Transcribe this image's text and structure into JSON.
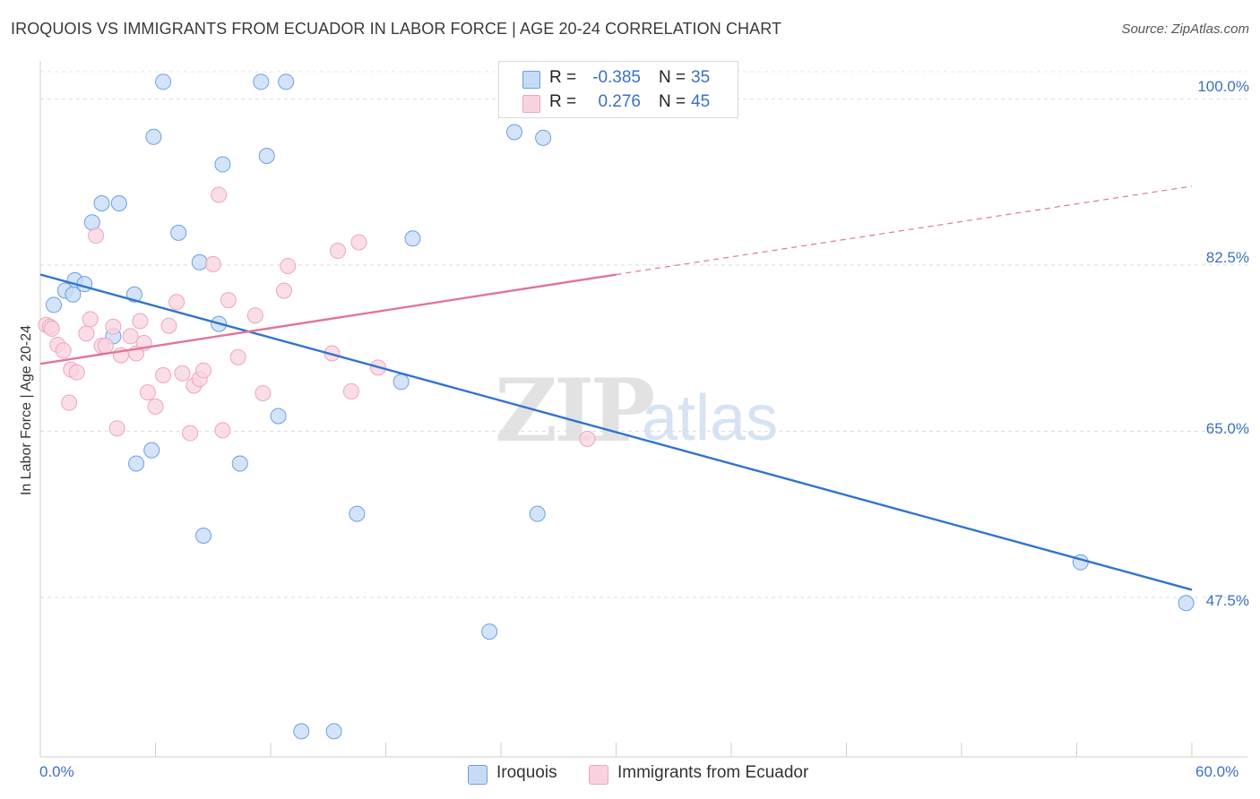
{
  "chart_data": {
    "type": "scatter",
    "title": "IROQUOIS VS IMMIGRANTS FROM ECUADOR IN LABOR FORCE | AGE 20-24 CORRELATION CHART",
    "source": "Source: ZipAtlas.com",
    "ylabel": "In Labor Force | Age 20-24",
    "xlabel": "",
    "xlim": [
      0,
      60
    ],
    "ylim": [
      30.7,
      104.0
    ],
    "x_tick_labels": [
      "0.0%",
      "60.0%"
    ],
    "y_ticks": [
      47.5,
      65.0,
      82.5,
      100.0
    ],
    "y_tick_labels": [
      "47.5%",
      "65.0%",
      "82.5%",
      "100.0%"
    ],
    "grid": true,
    "legend_position": "top-center",
    "watermark": {
      "part1": "ZIP",
      "part2": "atlas"
    },
    "series": [
      {
        "name": "Iroquois",
        "color": "#6b9fe0",
        "fill": "#c6dbf5",
        "line_color": "#2f74d0",
        "legend": {
          "r_label": "R =",
          "r": "-0.385",
          "n_label": "N =",
          "n": "35"
        },
        "points": [
          [
            6.4,
            101.8
          ],
          [
            11.5,
            101.8
          ],
          [
            12.8,
            101.8
          ],
          [
            5.9,
            96.0
          ],
          [
            9.5,
            93.1
          ],
          [
            11.8,
            94.0
          ],
          [
            3.2,
            89.0
          ],
          [
            4.1,
            89.0
          ],
          [
            2.7,
            87.0
          ],
          [
            7.2,
            85.9
          ],
          [
            19.4,
            85.3
          ],
          [
            8.3,
            82.8
          ],
          [
            1.8,
            80.9
          ],
          [
            2.3,
            80.5
          ],
          [
            1.3,
            79.8
          ],
          [
            1.7,
            79.4
          ],
          [
            4.9,
            79.4
          ],
          [
            0.7,
            78.3
          ],
          [
            9.3,
            76.3
          ],
          [
            3.8,
            75.0
          ],
          [
            18.8,
            70.2
          ],
          [
            12.4,
            66.6
          ],
          [
            5.8,
            63.0
          ],
          [
            5.0,
            61.6
          ],
          [
            10.4,
            61.6
          ],
          [
            16.5,
            56.3
          ],
          [
            25.9,
            56.3
          ],
          [
            8.5,
            54.0
          ],
          [
            54.2,
            51.2
          ],
          [
            59.7,
            46.9
          ],
          [
            23.4,
            43.9
          ],
          [
            13.6,
            33.4
          ],
          [
            15.3,
            33.4
          ],
          [
            24.7,
            96.5
          ],
          [
            26.2,
            95.9
          ]
        ],
        "trend": {
          "x": [
            0,
            60
          ],
          "y": [
            81.5,
            48.3
          ]
        }
      },
      {
        "name": "Immigrants from Ecuador",
        "color": "#eea4bd",
        "fill": "#f8d3df",
        "line_color": "#e0759a",
        "legend": {
          "r_label": "R =",
          "r": "0.276",
          "n_label": "N =",
          "n": "45"
        },
        "points": [
          [
            0.3,
            76.2
          ],
          [
            0.5,
            76.0
          ],
          [
            0.6,
            75.8
          ],
          [
            0.9,
            74.1
          ],
          [
            1.2,
            73.5
          ],
          [
            1.6,
            71.5
          ],
          [
            1.9,
            71.2
          ],
          [
            1.5,
            68.0
          ],
          [
            2.4,
            75.3
          ],
          [
            2.6,
            76.8
          ],
          [
            3.2,
            74.0
          ],
          [
            3.4,
            74.0
          ],
          [
            3.8,
            76.0
          ],
          [
            4.2,
            73.0
          ],
          [
            4.7,
            75.0
          ],
          [
            5.0,
            73.2
          ],
          [
            5.2,
            76.6
          ],
          [
            5.6,
            69.1
          ],
          [
            5.4,
            74.3
          ],
          [
            6.0,
            67.6
          ],
          [
            6.4,
            70.9
          ],
          [
            6.7,
            76.1
          ],
          [
            7.1,
            78.6
          ],
          [
            7.4,
            71.1
          ],
          [
            7.8,
            64.8
          ],
          [
            8.0,
            69.8
          ],
          [
            8.3,
            70.5
          ],
          [
            8.5,
            71.4
          ],
          [
            9.0,
            82.6
          ],
          [
            9.3,
            89.9
          ],
          [
            9.5,
            65.1
          ],
          [
            9.8,
            78.8
          ],
          [
            10.3,
            72.8
          ],
          [
            11.2,
            77.2
          ],
          [
            11.6,
            69.0
          ],
          [
            12.7,
            79.8
          ],
          [
            12.9,
            82.4
          ],
          [
            15.2,
            73.2
          ],
          [
            15.5,
            84.0
          ],
          [
            16.2,
            69.2
          ],
          [
            16.6,
            84.9
          ],
          [
            17.6,
            71.7
          ],
          [
            28.5,
            64.2
          ],
          [
            4.0,
            65.3
          ],
          [
            2.9,
            85.6
          ]
        ],
        "trend": {
          "x": [
            0,
            30
          ],
          "y": [
            72.1,
            81.5
          ]
        },
        "trend_dashed": {
          "x": [
            30,
            60
          ],
          "y": [
            81.5,
            90.8
          ]
        }
      }
    ]
  },
  "bottom_legend": [
    "Iroquois",
    "Immigrants from Ecuador"
  ]
}
